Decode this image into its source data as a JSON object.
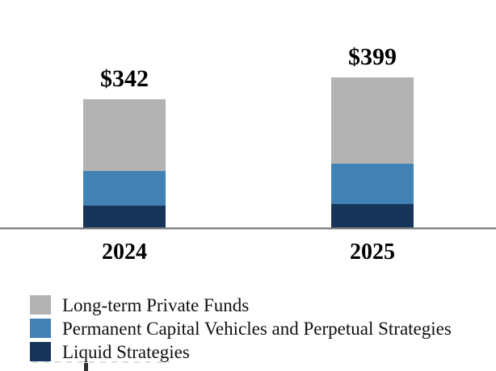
{
  "chart_data": {
    "type": "bar",
    "variant": "stacked-column",
    "title": "",
    "xlabel": "",
    "ylabel": "",
    "categories": [
      "2024",
      "2025"
    ],
    "totals": [
      342,
      399
    ],
    "total_labels": [
      "$342",
      "$399"
    ],
    "series": [
      {
        "name": "Liquid Strategies",
        "color": "#17355b",
        "values": [
          58,
          62
        ]
      },
      {
        "name": "Permanent Capital Vehicles and Perpetual Strategies",
        "color": "#4281b4",
        "values": [
          93,
          107
        ]
      },
      {
        "name": "Long-term Private Funds",
        "color": "#b3b3b3",
        "values": [
          191,
          230
        ]
      }
    ],
    "legend": {
      "position": "bottom-left",
      "entries": [
        {
          "label": "Long-term Private Funds",
          "color": "#b3b3b3"
        },
        {
          "label": "Permanent Capital Vehicles and Perpetual Strategies",
          "color": "#4281b4"
        },
        {
          "label": "Liquid Strategies",
          "color": "#17355b"
        }
      ]
    },
    "axis": {
      "baseline_color": "#7f7f7f",
      "gridlines": false,
      "y_axis_visible": false,
      "value_labels_bold": true
    }
  },
  "colors": {
    "background": "#ffffff",
    "text": "#000000",
    "gray_segment": "#b3b3b3",
    "blue_segment": "#4281b4",
    "navy_segment": "#17355b",
    "axis_line": "#7f7f7f"
  }
}
